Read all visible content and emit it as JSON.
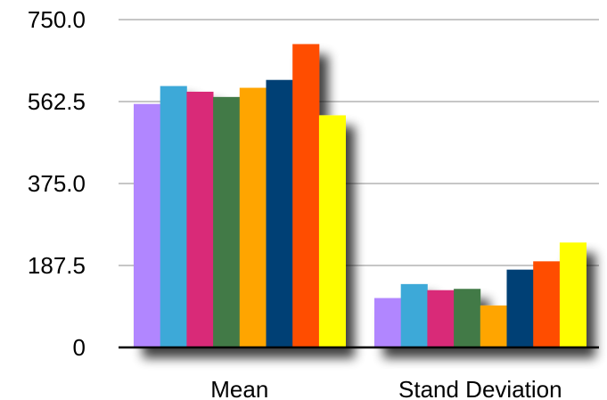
{
  "chart_data": {
    "type": "bar",
    "title": "",
    "xlabel": "",
    "ylabel": "",
    "categories": [
      "Mean",
      "Stand Deviation"
    ],
    "ylim": [
      0,
      750
    ],
    "yticks": [
      "0",
      "187.5",
      "375.0",
      "562.5",
      "750.0"
    ],
    "ytick_values": [
      0,
      187.5,
      375,
      562.5,
      750
    ],
    "grid": true,
    "legend": "none",
    "series": [
      {
        "color": "#b186ff",
        "values": [
          557,
          113
        ]
      },
      {
        "color": "#3ea9d8",
        "values": [
          598,
          145
        ]
      },
      {
        "color": "#d92a78",
        "values": [
          585,
          131
        ]
      },
      {
        "color": "#427a46",
        "values": [
          573,
          134
        ]
      },
      {
        "color": "#ffa500",
        "values": [
          594,
          96
        ]
      },
      {
        "color": "#003f74",
        "values": [
          612,
          178
        ]
      },
      {
        "color": "#ff4d00",
        "values": [
          694,
          197
        ]
      },
      {
        "color": "#ffff00",
        "values": [
          531,
          240
        ]
      }
    ]
  }
}
